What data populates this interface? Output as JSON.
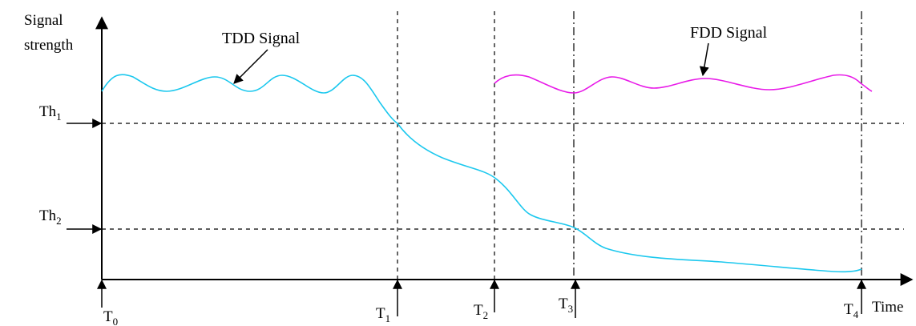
{
  "axes": {
    "y_label_line1": "Signal",
    "y_label_line2": "strength",
    "x_label": "Time"
  },
  "thresholds": [
    {
      "base": "Th",
      "sub": "1"
    },
    {
      "base": "Th",
      "sub": "2"
    }
  ],
  "time_marks": [
    {
      "base": "T",
      "sub": "0"
    },
    {
      "base": "T",
      "sub": "1"
    },
    {
      "base": "T",
      "sub": "2"
    },
    {
      "base": "T",
      "sub": "3"
    },
    {
      "base": "T",
      "sub": "4"
    }
  ],
  "signals": {
    "tdd": {
      "label": "TDD Signal",
      "color": "#1cc8ee"
    },
    "fdd": {
      "label": "FDD Signal",
      "color": "#e81ce8"
    }
  }
}
